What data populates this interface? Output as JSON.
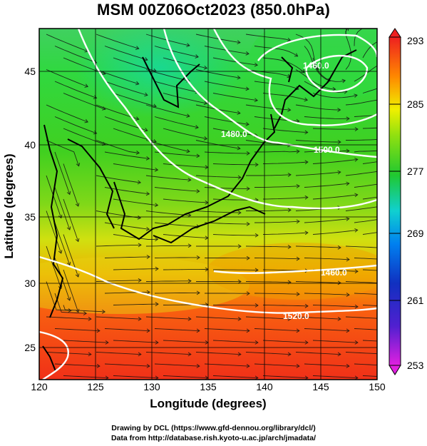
{
  "title": "MSM 00Z06Oct2023 (850.0hPa)",
  "xlabel": "Longitude (degrees)",
  "ylabel": "Latitude  (degrees)",
  "credits": [
    "Drawing by DCL (https://www.gfd-dennou.org/library/dcl/)",
    "Data from http://database.rish.kyoto-u.ac.jp/arch/jmadata/"
  ],
  "chart_data": {
    "type": "heatmap",
    "variable_colorbar_ticks": [
      "293",
      "285",
      "277",
      "269",
      "261",
      "253"
    ],
    "colorbar_range": [
      253,
      293
    ],
    "colors": [
      "#e020e0",
      "#1020c0",
      "#00a0ff",
      "#10e0c0",
      "#20c820",
      "#a0e010",
      "#f0f000",
      "#ff9000",
      "#ff3000",
      "#e02020"
    ],
    "x": {
      "label": "Longitude (degrees)",
      "range": [
        120,
        150
      ],
      "ticks": [
        "120",
        "125",
        "130",
        "135",
        "140",
        "145",
        "150"
      ]
    },
    "y": {
      "label": "Latitude  (degrees)",
      "range": [
        22.7,
        48.2
      ],
      "ticks": [
        "25",
        "30",
        "35",
        "40",
        "45"
      ]
    },
    "grid": true,
    "contour_labels": [
      {
        "text": "1460.0",
        "lon": 144,
        "lat": 44.9
      },
      {
        "text": "1480.0",
        "lon": 139.3,
        "lat": 41.3
      },
      {
        "text": "1500.0",
        "lon": 146.5,
        "lat": 40.1
      },
      {
        "text": "1460.0",
        "lon": 146.8,
        "lat": 30.7
      },
      {
        "text": "1520.0",
        "lon": 143.3,
        "lat": 27.8
      }
    ]
  }
}
